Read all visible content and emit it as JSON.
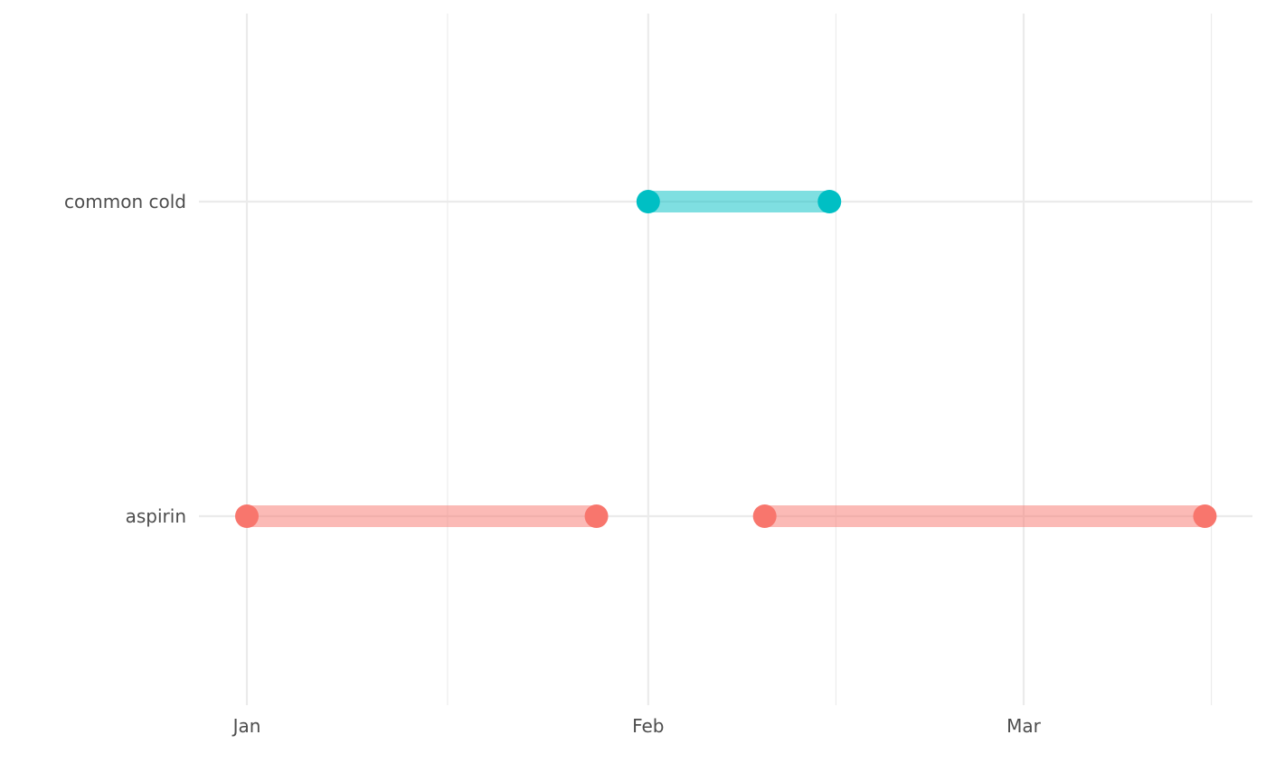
{
  "chart_data": {
    "type": "timeline",
    "title": "",
    "xlabel": "",
    "ylabel": "",
    "categories": [
      "aspirin",
      "common cold"
    ],
    "x_ticks": [
      {
        "label": "Jan",
        "date": "2000-01-01"
      },
      {
        "label": "Feb",
        "date": "2000-02-01"
      },
      {
        "label": "Mar",
        "date": "2000-03-01"
      }
    ],
    "xlim": [
      "1999-12-28",
      "2000-03-18"
    ],
    "grid": true,
    "legend": "none",
    "colors": {
      "aspirin": "#F8766D",
      "common cold": "#00BFC4"
    },
    "segments": [
      {
        "category": "aspirin",
        "start": "2000-01-01",
        "end": "2000-01-28"
      },
      {
        "category": "aspirin",
        "start": "2000-02-10",
        "end": "2000-03-15"
      },
      {
        "category": "common cold",
        "start": "2000-02-01",
        "end": "2000-02-15"
      }
    ]
  }
}
